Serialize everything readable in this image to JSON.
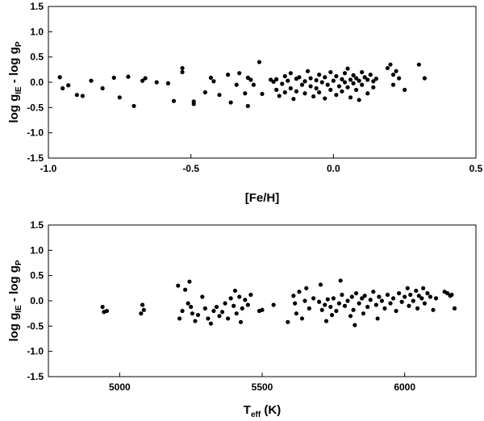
{
  "chart_data": [
    {
      "type": "scatter",
      "title": "",
      "xlabel": "[Fe/H]",
      "ylabel": {
        "main": "log g",
        "sub1": "IE",
        "mid": " - log g",
        "sub2": "P"
      },
      "xlim": [
        -1.0,
        0.5
      ],
      "ylim": [
        -1.5,
        1.5
      ],
      "xticks": [
        -1.0,
        -0.5,
        0.0,
        0.5
      ],
      "xtick_labels": [
        "-1.0",
        "-0.5",
        "0.0",
        "0.5"
      ],
      "yticks": [
        -1.5,
        -1.0,
        -0.5,
        0.0,
        0.5,
        1.0,
        1.5
      ],
      "ytick_labels": [
        "-1.5",
        "-1.0",
        "-0.5",
        "0.0",
        "0.5",
        "1.0",
        "1.5"
      ],
      "grid": false,
      "series": [
        {
          "marker_color": "#000000",
          "points": [
            [
              -0.96,
              0.1
            ],
            [
              -0.95,
              -0.12
            ],
            [
              -0.93,
              -0.06
            ],
            [
              -0.9,
              -0.25
            ],
            [
              -0.88,
              -0.27
            ],
            [
              -0.85,
              0.03
            ],
            [
              -0.81,
              -0.12
            ],
            [
              -0.77,
              0.09
            ],
            [
              -0.75,
              -0.3
            ],
            [
              -0.72,
              0.11
            ],
            [
              -0.7,
              -0.47
            ],
            [
              -0.67,
              0.03
            ],
            [
              -0.66,
              0.08
            ],
            [
              -0.62,
              0.0
            ],
            [
              -0.58,
              -0.02
            ],
            [
              -0.56,
              -0.37
            ],
            [
              -0.53,
              0.28
            ],
            [
              -0.53,
              0.2
            ],
            [
              -0.49,
              -0.38
            ],
            [
              -0.49,
              -0.43
            ],
            [
              -0.45,
              -0.2
            ],
            [
              -0.43,
              0.09
            ],
            [
              -0.42,
              0.02
            ],
            [
              -0.4,
              -0.25
            ],
            [
              -0.37,
              0.15
            ],
            [
              -0.36,
              -0.4
            ],
            [
              -0.34,
              -0.05
            ],
            [
              -0.33,
              0.18
            ],
            [
              -0.31,
              -0.22
            ],
            [
              -0.3,
              0.09
            ],
            [
              -0.3,
              -0.47
            ],
            [
              -0.29,
              0.05
            ],
            [
              -0.28,
              -0.05
            ],
            [
              -0.26,
              0.4
            ],
            [
              -0.25,
              -0.23
            ],
            [
              -0.22,
              0.05
            ],
            [
              -0.21,
              0.01
            ],
            [
              -0.2,
              -0.15
            ],
            [
              -0.2,
              0.06
            ],
            [
              -0.19,
              -0.27
            ],
            [
              -0.18,
              -0.03
            ],
            [
              -0.17,
              0.12
            ],
            [
              -0.17,
              -0.2
            ],
            [
              -0.16,
              0.03
            ],
            [
              -0.15,
              -0.12
            ],
            [
              -0.15,
              0.18
            ],
            [
              -0.14,
              -0.33
            ],
            [
              -0.13,
              0.07
            ],
            [
              -0.13,
              -0.18
            ],
            [
              -0.12,
              0.1
            ],
            [
              -0.11,
              -0.05
            ],
            [
              -0.1,
              -0.22
            ],
            [
              -0.1,
              0.02
            ],
            [
              -0.09,
              0.22
            ],
            [
              -0.08,
              -0.08
            ],
            [
              -0.08,
              0.08
            ],
            [
              -0.07,
              -0.28
            ],
            [
              -0.06,
              0.04
            ],
            [
              -0.06,
              -0.12
            ],
            [
              -0.05,
              0.15
            ],
            [
              -0.05,
              -0.2
            ],
            [
              -0.04,
              0.0
            ],
            [
              -0.03,
              -0.32
            ],
            [
              -0.03,
              0.1
            ],
            [
              -0.02,
              -0.05
            ],
            [
              -0.01,
              0.2
            ],
            [
              -0.01,
              -0.15
            ],
            [
              0.0,
              0.03
            ],
            [
              0.01,
              -0.25
            ],
            [
              0.01,
              0.12
            ],
            [
              0.02,
              -0.08
            ],
            [
              0.03,
              0.06
            ],
            [
              0.03,
              -0.18
            ],
            [
              0.04,
              0.18
            ],
            [
              0.04,
              0.0
            ],
            [
              0.05,
              -0.1
            ],
            [
              0.05,
              0.27
            ],
            [
              0.06,
              0.05
            ],
            [
              0.06,
              -0.3
            ],
            [
              0.07,
              0.14
            ],
            [
              0.07,
              -0.02
            ],
            [
              0.08,
              0.08
            ],
            [
              0.08,
              -0.15
            ],
            [
              0.09,
              0.03
            ],
            [
              0.09,
              -0.35
            ],
            [
              0.1,
              0.2
            ],
            [
              0.1,
              -0.05
            ],
            [
              0.11,
              0.1
            ],
            [
              0.12,
              -0.22
            ],
            [
              0.12,
              0.05
            ],
            [
              0.13,
              0.15
            ],
            [
              0.14,
              -0.1
            ],
            [
              0.14,
              0.02
            ],
            [
              0.15,
              0.07
            ],
            [
              0.19,
              0.28
            ],
            [
              0.2,
              0.35
            ],
            [
              0.21,
              0.15
            ],
            [
              0.21,
              -0.05
            ],
            [
              0.22,
              0.22
            ],
            [
              0.23,
              0.08
            ],
            [
              0.25,
              -0.15
            ],
            [
              0.3,
              0.35
            ],
            [
              0.32,
              0.08
            ]
          ]
        }
      ]
    },
    {
      "type": "scatter",
      "title": "",
      "xlabel": {
        "main": "T",
        "sub": "eff",
        "rest": " (K)"
      },
      "ylabel": {
        "main": "log g",
        "sub1": "IE",
        "mid": " - log g",
        "sub2": "P"
      },
      "xlim": [
        4750,
        6250
      ],
      "ylim": [
        -1.5,
        1.5
      ],
      "xticks": [
        5000,
        5500,
        6000
      ],
      "xtick_labels": [
        "5000",
        "5500",
        "6000"
      ],
      "yticks": [
        -1.5,
        -1.0,
        -0.5,
        0.0,
        0.5,
        1.0,
        1.5
      ],
      "ytick_labels": [
        "-1.5",
        "-1.0",
        "-0.5",
        "0.0",
        "0.5",
        "1.0",
        "1.5"
      ],
      "grid": false,
      "series": [
        {
          "marker_color": "#000000",
          "points": [
            [
              4940,
              -0.12
            ],
            [
              4945,
              -0.22
            ],
            [
              4955,
              -0.2
            ],
            [
              5075,
              -0.25
            ],
            [
              5080,
              -0.08
            ],
            [
              5085,
              -0.18
            ],
            [
              5205,
              0.3
            ],
            [
              5210,
              -0.35
            ],
            [
              5220,
              -0.2
            ],
            [
              5230,
              0.22
            ],
            [
              5240,
              -0.05
            ],
            [
              5245,
              0.38
            ],
            [
              5250,
              -0.12
            ],
            [
              5255,
              -0.25
            ],
            [
              5265,
              -0.4
            ],
            [
              5275,
              -0.28
            ],
            [
              5290,
              0.08
            ],
            [
              5300,
              -0.15
            ],
            [
              5310,
              -0.35
            ],
            [
              5320,
              -0.45
            ],
            [
              5330,
              -0.2
            ],
            [
              5340,
              -0.12
            ],
            [
              5350,
              -0.3
            ],
            [
              5360,
              -0.22
            ],
            [
              5370,
              -0.05
            ],
            [
              5380,
              -0.35
            ],
            [
              5390,
              0.05
            ],
            [
              5400,
              -0.1
            ],
            [
              5405,
              0.2
            ],
            [
              5410,
              -0.25
            ],
            [
              5420,
              0.08
            ],
            [
              5425,
              -0.42
            ],
            [
              5430,
              -0.15
            ],
            [
              5440,
              0.02
            ],
            [
              5450,
              -0.08
            ],
            [
              5460,
              0.12
            ],
            [
              5490,
              -0.2
            ],
            [
              5500,
              -0.18
            ],
            [
              5540,
              -0.08
            ],
            [
              5590,
              -0.42
            ],
            [
              5610,
              0.1
            ],
            [
              5615,
              -0.05
            ],
            [
              5620,
              -0.25
            ],
            [
              5630,
              0.18
            ],
            [
              5640,
              -0.35
            ],
            [
              5650,
              0.0
            ],
            [
              5655,
              0.25
            ],
            [
              5665,
              -0.15
            ],
            [
              5680,
              0.05
            ],
            [
              5700,
              -0.02
            ],
            [
              5705,
              0.32
            ],
            [
              5710,
              -0.18
            ],
            [
              5720,
              -0.08
            ],
            [
              5725,
              -0.4
            ],
            [
              5730,
              0.03
            ],
            [
              5740,
              -0.12
            ],
            [
              5745,
              -0.28
            ],
            [
              5750,
              0.05
            ],
            [
              5760,
              -0.2
            ],
            [
              5770,
              -0.05
            ],
            [
              5775,
              0.4
            ],
            [
              5780,
              0.12
            ],
            [
              5790,
              -0.1
            ],
            [
              5800,
              0.0
            ],
            [
              5810,
              -0.3
            ],
            [
              5815,
              0.08
            ],
            [
              5820,
              -0.18
            ],
            [
              5825,
              -0.48
            ],
            [
              5830,
              0.15
            ],
            [
              5840,
              -0.05
            ],
            [
              5850,
              0.05
            ],
            [
              5855,
              -0.25
            ],
            [
              5860,
              0.1
            ],
            [
              5870,
              -0.12
            ],
            [
              5880,
              0.02
            ],
            [
              5890,
              0.18
            ],
            [
              5900,
              -0.08
            ],
            [
              5905,
              -0.35
            ],
            [
              5910,
              0.08
            ],
            [
              5920,
              0.0
            ],
            [
              5930,
              -0.15
            ],
            [
              5940,
              0.12
            ],
            [
              5950,
              -0.05
            ],
            [
              5960,
              0.05
            ],
            [
              5970,
              -0.2
            ],
            [
              5980,
              0.15
            ],
            [
              5990,
              -0.02
            ],
            [
              6000,
              0.08
            ],
            [
              6010,
              0.25
            ],
            [
              6015,
              -0.1
            ],
            [
              6020,
              0.12
            ],
            [
              6030,
              0.0
            ],
            [
              6040,
              0.2
            ],
            [
              6045,
              -0.15
            ],
            [
              6050,
              0.1
            ],
            [
              6060,
              0.05
            ],
            [
              6065,
              0.25
            ],
            [
              6070,
              -0.05
            ],
            [
              6080,
              0.15
            ],
            [
              6090,
              0.08
            ],
            [
              6100,
              -0.18
            ],
            [
              6110,
              0.05
            ],
            [
              6140,
              0.18
            ],
            [
              6150,
              0.15
            ],
            [
              6160,
              0.1
            ],
            [
              6165,
              0.12
            ],
            [
              6175,
              -0.15
            ]
          ]
        }
      ]
    }
  ]
}
